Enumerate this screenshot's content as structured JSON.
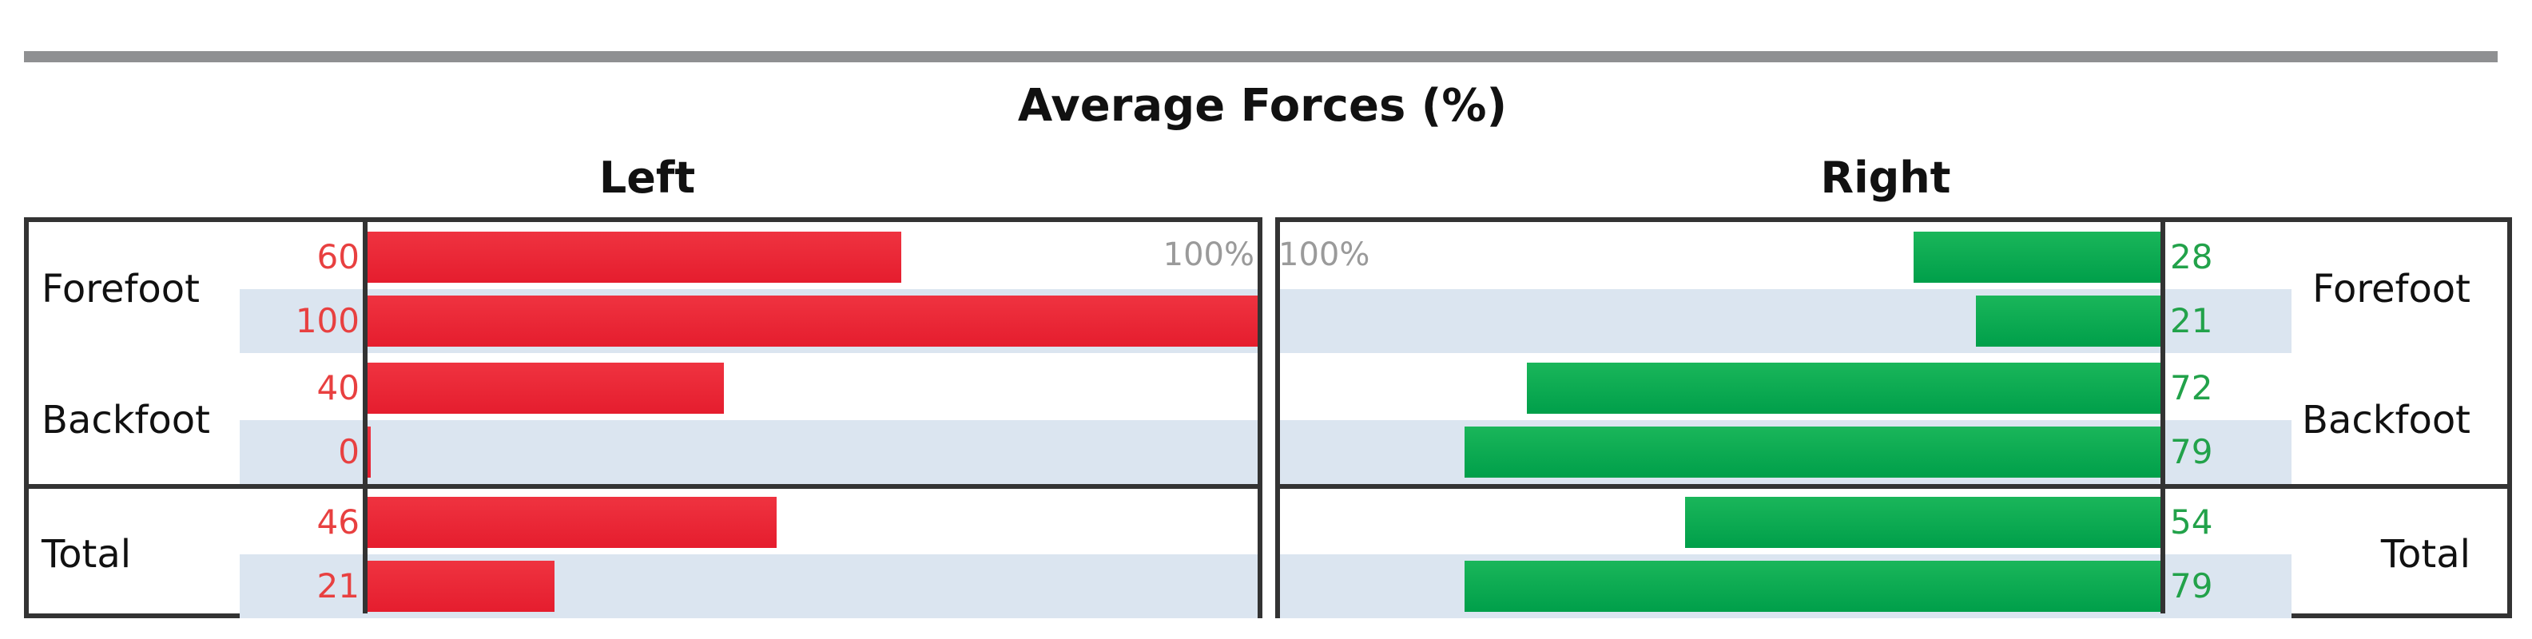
{
  "chart_data": {
    "type": "bar",
    "title": "Average Forces (%)",
    "panels": [
      {
        "name": "Left",
        "color": "#e51d2e",
        "max_label": "100%"
      },
      {
        "name": "Right",
        "color": "#009f4a",
        "max_label": "100%"
      }
    ],
    "xlim": [
      0,
      100
    ],
    "groups": [
      {
        "label": "Forefoot",
        "left": [
          60,
          100
        ],
        "right": [
          28,
          21
        ]
      },
      {
        "label": "Backfoot",
        "left": [
          40,
          0
        ],
        "right": [
          72,
          79
        ]
      },
      {
        "label": "Total",
        "left": [
          46,
          21
        ],
        "right": [
          54,
          79
        ]
      }
    ]
  }
}
